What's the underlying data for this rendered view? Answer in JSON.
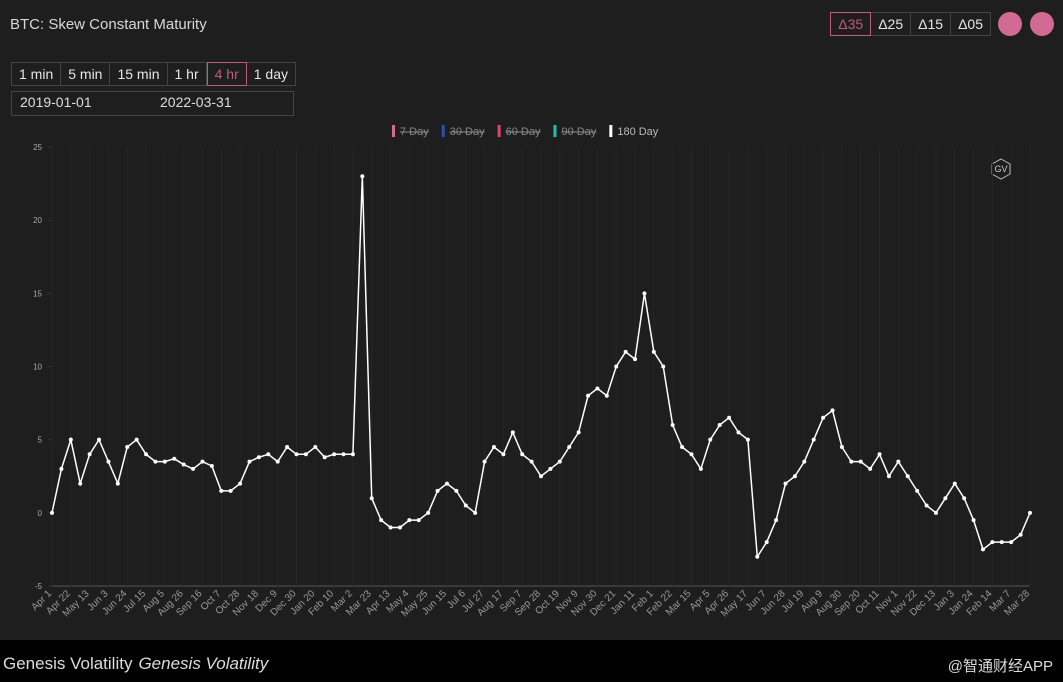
{
  "header": {
    "title": "BTC: Skew Constant Maturity",
    "delta_buttons": [
      "Δ35",
      "Δ25",
      "Δ15",
      "Δ05"
    ],
    "active_delta": 0,
    "interval_buttons": [
      "1 min",
      "5 min",
      "15 min",
      "1 hr",
      "4 hr",
      "1 day"
    ],
    "active_interval": 4,
    "start_date": "2019-01-01",
    "end_date": "2022-03-31"
  },
  "footer": {
    "source": "Genesis Volatility",
    "source_italic": "Genesis Volatility",
    "watermark": "@智通财经APP"
  },
  "logo": "GV",
  "chart_data": {
    "type": "line",
    "categories": [
      "Apr 1",
      null,
      "Apr 22",
      null,
      "May 13",
      null,
      "Jun 3",
      null,
      "Jun 24",
      null,
      "Jul 15",
      null,
      "Aug 5",
      null,
      "Aug 26",
      null,
      "Sep 16",
      null,
      "Oct 7",
      null,
      "Oct 28",
      null,
      "Nov 18",
      null,
      "Dec 9",
      null,
      "Dec 30",
      null,
      "Jan 20",
      null,
      "Feb 10",
      null,
      "Mar 2",
      null,
      "Mar 23",
      null,
      "Apr 13",
      null,
      "May 4",
      null,
      "May 25",
      null,
      "Jun 15",
      null,
      "Jul 6",
      null,
      "Jul 27",
      null,
      "Aug 17",
      null,
      "Sep 7",
      null,
      "Sep 28",
      null,
      "Oct 19",
      null,
      "Nov 9",
      null,
      "Nov 30",
      null,
      "Dec 21",
      null,
      "Jan 11",
      null,
      "Feb 1",
      null,
      "Feb 22",
      null,
      "Mar 15",
      null,
      "Apr 5",
      null,
      "Apr 26",
      null,
      "May 17",
      null,
      "Jun 7",
      null,
      "Jun 28",
      null,
      "Jul 19",
      null,
      "Aug 9",
      null,
      "Aug 30",
      null,
      "Sep 20",
      null,
      "Oct 11",
      null,
      "Nov 1",
      null,
      "Nov 22",
      null,
      "Dec 13",
      null,
      "Jan 3",
      null,
      "Jan 24",
      null,
      "Feb 14",
      null,
      "Mar 7",
      null,
      "Mar 28"
    ],
    "series": [
      {
        "name": "7 Day",
        "color": "#d16b96",
        "hidden": true
      },
      {
        "name": "30 Day",
        "color": "#2e4fa8",
        "hidden": true
      },
      {
        "name": "60 Day",
        "color": "#e0456a",
        "hidden": true
      },
      {
        "name": "90 Day",
        "color": "#1fc2a8",
        "hidden": true
      },
      {
        "name": "180 Day",
        "color": "#ffffff",
        "hidden": false,
        "values": [
          0,
          3,
          5,
          2,
          4,
          5,
          3.5,
          2,
          4.5,
          5,
          4,
          3.5,
          3.5,
          3.7,
          3.3,
          3,
          3.5,
          3.2,
          1.5,
          1.5,
          2,
          3.5,
          3.8,
          4,
          3.5,
          4.5,
          4,
          4,
          4.5,
          3.8,
          4,
          4,
          4,
          23,
          1,
          -0.5,
          -1,
          -1,
          -0.5,
          -0.5,
          0,
          1.5,
          2,
          1.5,
          0.5,
          0,
          3.5,
          4.5,
          4,
          5.5,
          4,
          3.5,
          2.5,
          3,
          3.5,
          4.5,
          5.5,
          8,
          8.5,
          8,
          10,
          11,
          10.5,
          15,
          11,
          10,
          6,
          4.5,
          4,
          3,
          5,
          6,
          6.5,
          5.5,
          5,
          -3,
          -2,
          -0.5,
          2,
          2.5,
          3.5,
          5,
          6.5,
          7,
          4.5,
          3.5,
          3.5,
          3,
          4,
          2.5,
          3.5,
          2.5,
          1.5,
          0.5,
          0,
          1,
          2,
          1,
          -0.5,
          -2.5,
          -2,
          -2,
          -2,
          -1.5,
          0
        ]
      }
    ],
    "ylim": [
      -5,
      25
    ],
    "yticks": [
      -5,
      0,
      5,
      10,
      15,
      20,
      25
    ],
    "grid": false
  }
}
